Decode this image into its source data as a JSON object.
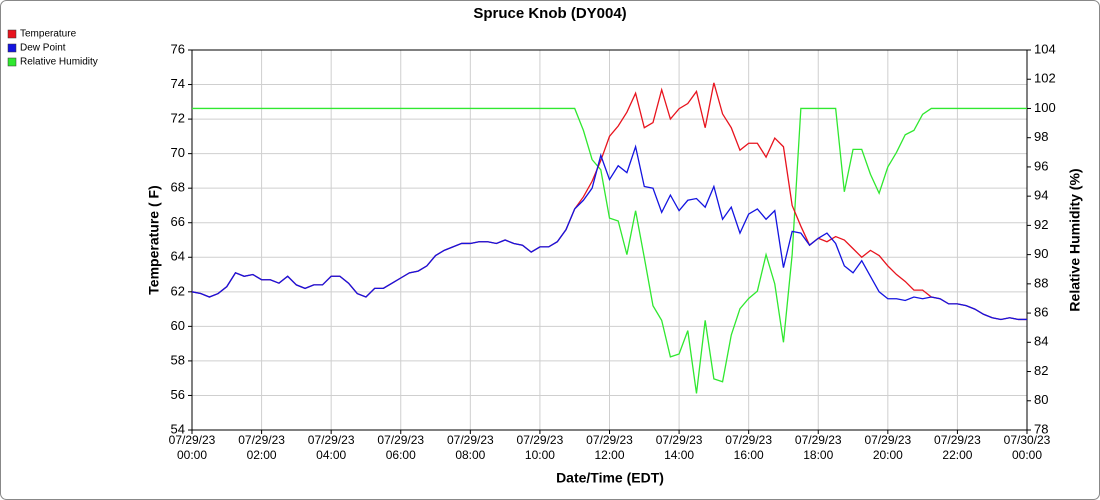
{
  "chart_data": {
    "type": "line",
    "title": "Spruce Knob (DY004)",
    "x_label": "Date/Time (EDT)",
    "y_label": "Temperature ( F)",
    "y2_label": "Relative Humidity (%)",
    "legend": "top-left",
    "grid": true,
    "xlim": [
      0,
      24
    ],
    "xticks": [
      {
        "value": 0,
        "label": [
          "07/29/23",
          "00:00"
        ]
      },
      {
        "value": 2,
        "label": [
          "07/29/23",
          "02:00"
        ]
      },
      {
        "value": 4,
        "label": [
          "07/29/23",
          "04:00"
        ]
      },
      {
        "value": 6,
        "label": [
          "07/29/23",
          "06:00"
        ]
      },
      {
        "value": 8,
        "label": [
          "07/29/23",
          "08:00"
        ]
      },
      {
        "value": 10,
        "label": [
          "07/29/23",
          "10:00"
        ]
      },
      {
        "value": 12,
        "label": [
          "07/29/23",
          "12:00"
        ]
      },
      {
        "value": 14,
        "label": [
          "07/29/23",
          "14:00"
        ]
      },
      {
        "value": 16,
        "label": [
          "07/29/23",
          "16:00"
        ]
      },
      {
        "value": 18,
        "label": [
          "07/29/23",
          "18:00"
        ]
      },
      {
        "value": 20,
        "label": [
          "07/29/23",
          "20:00"
        ]
      },
      {
        "value": 22,
        "label": [
          "07/29/23",
          "22:00"
        ]
      },
      {
        "value": 24,
        "label": [
          "07/30/23",
          "00:00"
        ]
      }
    ],
    "ylim": [
      54,
      76
    ],
    "yticks": [
      54,
      56,
      58,
      60,
      62,
      64,
      66,
      68,
      70,
      72,
      74,
      76
    ],
    "y2lim": [
      78,
      104
    ],
    "y2ticks": [
      78,
      80,
      82,
      84,
      86,
      88,
      90,
      92,
      94,
      96,
      98,
      100,
      102,
      104
    ],
    "x": [
      0,
      0.25,
      0.5,
      0.75,
      1,
      1.25,
      1.5,
      1.75,
      2,
      2.25,
      2.5,
      2.75,
      3,
      3.25,
      3.5,
      3.75,
      4,
      4.25,
      4.5,
      4.75,
      5,
      5.25,
      5.5,
      5.75,
      6,
      6.25,
      6.5,
      6.75,
      7,
      7.25,
      7.5,
      7.75,
      8,
      8.25,
      8.5,
      8.75,
      9,
      9.25,
      9.5,
      9.75,
      10,
      10.25,
      10.5,
      10.75,
      11,
      11.25,
      11.5,
      11.75,
      12,
      12.25,
      12.5,
      12.75,
      13,
      13.25,
      13.5,
      13.75,
      14,
      14.25,
      14.5,
      14.75,
      15,
      15.25,
      15.5,
      15.75,
      16,
      16.25,
      16.5,
      16.75,
      17,
      17.25,
      17.5,
      17.75,
      18,
      18.25,
      18.5,
      18.75,
      19,
      19.25,
      19.5,
      19.75,
      20,
      20.25,
      20.5,
      20.75,
      21,
      21.25,
      21.5,
      21.75,
      22,
      22.25,
      22.5,
      22.75,
      23,
      23.25,
      23.5,
      23.75,
      24
    ],
    "series": [
      {
        "name": "Temperature",
        "color": "#e8141e",
        "values": [
          62.0,
          61.9,
          61.7,
          61.9,
          62.3,
          63.1,
          62.9,
          63.0,
          62.7,
          62.7,
          62.5,
          62.9,
          62.4,
          62.2,
          62.4,
          62.4,
          62.9,
          62.9,
          62.5,
          61.9,
          61.7,
          62.2,
          62.2,
          62.5,
          62.8,
          63.1,
          63.2,
          63.5,
          64.1,
          64.4,
          64.6,
          64.8,
          64.8,
          64.9,
          64.9,
          64.8,
          65.0,
          64.8,
          64.7,
          64.3,
          64.6,
          64.6,
          64.9,
          65.6,
          66.8,
          67.5,
          68.4,
          69.6,
          71.0,
          71.6,
          72.4,
          73.5,
          71.5,
          71.8,
          73.7,
          72.0,
          72.6,
          72.9,
          73.6,
          71.5,
          74.1,
          72.3,
          71.5,
          70.2,
          70.6,
          70.6,
          69.8,
          70.9,
          70.4,
          67.0,
          65.8,
          64.7,
          65.1,
          64.9,
          65.2,
          65.0,
          64.5,
          64.0,
          64.4,
          64.1,
          63.5,
          63.0,
          62.6,
          62.1,
          62.1,
          61.7,
          61.6,
          61.3,
          61.3,
          61.2,
          61.0,
          60.7,
          60.5,
          60.4,
          60.5,
          60.4,
          60.4
        ]
      },
      {
        "name": "Dew Point",
        "color": "#1414e0",
        "values": [
          62.0,
          61.9,
          61.7,
          61.9,
          62.3,
          63.1,
          62.9,
          63.0,
          62.7,
          62.7,
          62.5,
          62.9,
          62.4,
          62.2,
          62.4,
          62.4,
          62.9,
          62.9,
          62.5,
          61.9,
          61.7,
          62.2,
          62.2,
          62.5,
          62.8,
          63.1,
          63.2,
          63.5,
          64.1,
          64.4,
          64.6,
          64.8,
          64.8,
          64.9,
          64.9,
          64.8,
          65.0,
          64.8,
          64.7,
          64.3,
          64.6,
          64.6,
          64.9,
          65.6,
          66.8,
          67.3,
          68.0,
          69.9,
          68.5,
          69.3,
          68.9,
          70.4,
          68.1,
          68.0,
          66.6,
          67.6,
          66.7,
          67.3,
          67.4,
          66.9,
          68.1,
          66.2,
          66.9,
          65.4,
          66.5,
          66.8,
          66.2,
          66.7,
          63.4,
          65.5,
          65.4,
          64.7,
          65.1,
          65.4,
          64.8,
          63.5,
          63.1,
          63.8,
          62.9,
          62.0,
          61.6,
          61.6,
          61.5,
          61.7,
          61.6,
          61.7,
          61.6,
          61.3,
          61.3,
          61.2,
          61.0,
          60.7,
          60.5,
          60.4,
          60.5,
          60.4,
          60.4
        ]
      },
      {
        "name": "Relative Humidity",
        "color": "#30e830",
        "axis": "y2",
        "values": [
          100,
          100,
          100,
          100,
          100,
          100,
          100,
          100,
          100,
          100,
          100,
          100,
          100,
          100,
          100,
          100,
          100,
          100,
          100,
          100,
          100,
          100,
          100,
          100,
          100,
          100,
          100,
          100,
          100,
          100,
          100,
          100,
          100,
          100,
          100,
          100,
          100,
          100,
          100,
          100,
          100,
          100,
          100,
          100,
          100,
          98.5,
          96.5,
          95.8,
          92.5,
          92.3,
          90.0,
          93.0,
          89.8,
          86.5,
          85.5,
          83.0,
          83.2,
          84.8,
          80.5,
          85.5,
          81.5,
          81.3,
          84.5,
          86.3,
          87.0,
          87.5,
          90.0,
          88.0,
          84.0,
          90.0,
          100,
          100,
          100,
          100,
          100,
          94.3,
          97.2,
          97.2,
          95.5,
          94.2,
          96.0,
          97.0,
          98.2,
          98.5,
          99.6,
          100,
          100,
          100,
          100,
          100,
          100,
          100,
          100,
          100,
          100,
          100,
          100
        ]
      }
    ]
  }
}
